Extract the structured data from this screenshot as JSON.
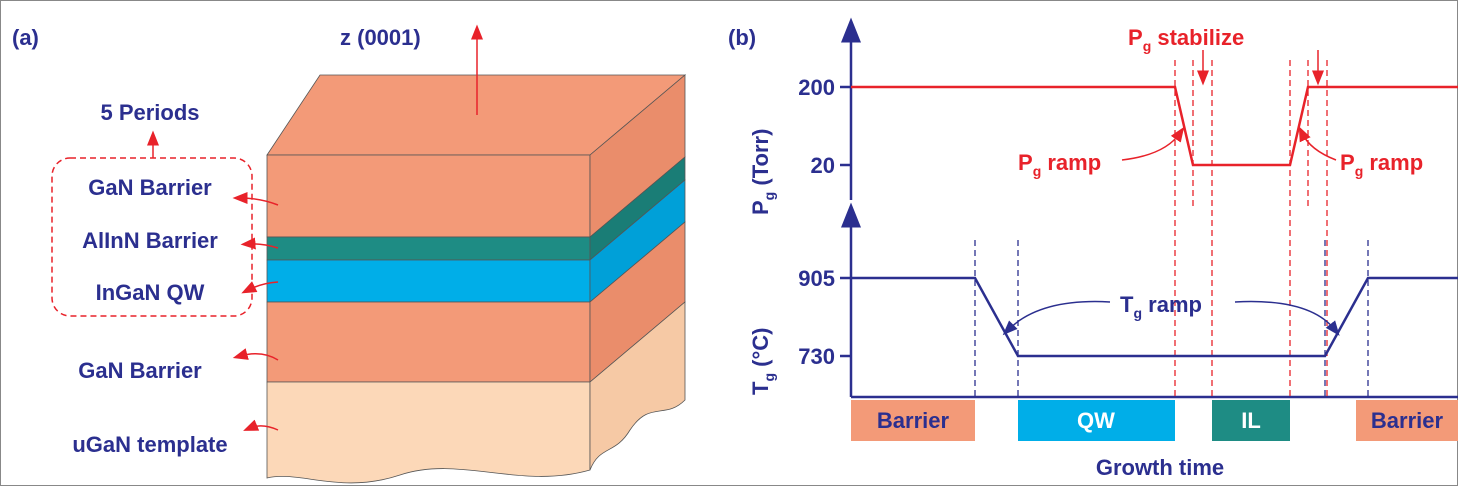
{
  "panel_a": {
    "label": "(a)",
    "axis": "z (0001)",
    "group": "5 Periods",
    "layers": [
      "GaN Barrier",
      "AlInN Barrier",
      "InGaN QW",
      "GaN Barrier",
      "uGaN template"
    ]
  },
  "panel_b": {
    "label": "(b)",
    "pressure_axis": {
      "symbol": "P",
      "sub": "g",
      "unit": "(Torr)"
    },
    "pressure_ticks": [
      "200",
      "20"
    ],
    "temp_axis": {
      "symbol": "T",
      "sub": "g",
      "unit": "(°C)"
    },
    "temp_ticks": [
      "905",
      "730"
    ],
    "stabilize": {
      "symbol": "P",
      "sub": "g",
      "text": "stabilize"
    },
    "p_ramp_left": {
      "symbol": "P",
      "sub": "g",
      "text": "ramp"
    },
    "p_ramp_right": {
      "symbol": "P",
      "sub": "g",
      "text": "ramp"
    },
    "t_ramp": {
      "symbol": "T",
      "sub": "g",
      "text": "ramp"
    },
    "steps": [
      "Barrier",
      "QW",
      "IL",
      "Barrier"
    ],
    "x_axis": "Growth time"
  }
}
